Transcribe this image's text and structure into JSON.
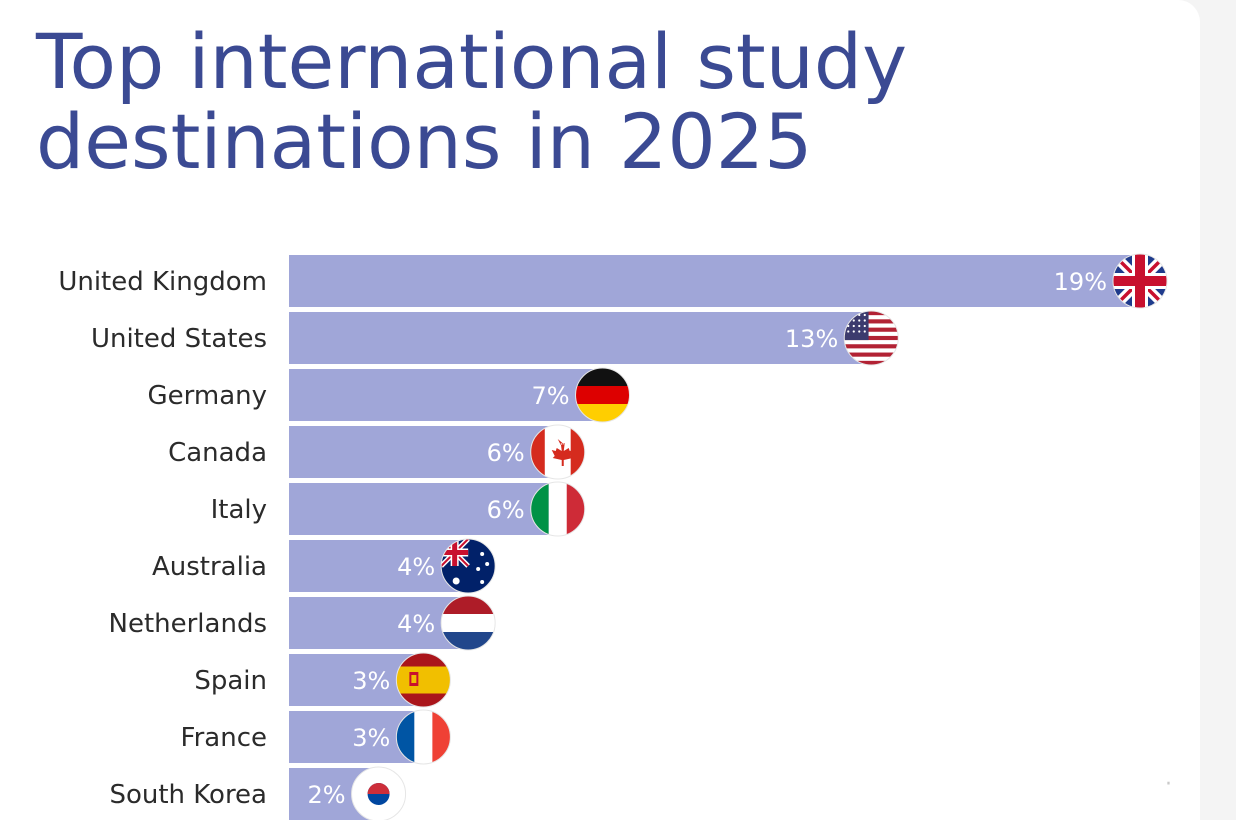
{
  "chart_data": {
    "type": "bar",
    "orientation": "horizontal",
    "title": "Top international study destinations in 2025",
    "title_lines": [
      "Top international study",
      "destinations in 2025"
    ],
    "categories": [
      "United Kingdom",
      "United States",
      "Germany",
      "Canada",
      "Italy",
      "Australia",
      "Netherlands",
      "Spain",
      "France",
      "South Korea"
    ],
    "values": [
      19,
      13,
      7,
      6,
      6,
      4,
      4,
      3,
      3,
      2
    ],
    "value_labels": [
      "19%",
      "13%",
      "7%",
      "6%",
      "6%",
      "4%",
      "4%",
      "3%",
      "3%",
      "2%"
    ],
    "unit": "%",
    "xlim": [
      0,
      19.5
    ],
    "grid": false,
    "legend": "none",
    "bar_color": "#a0a6d8",
    "title_color": "#3b4a93",
    "flags": [
      "uk-flag-icon",
      "us-flag-icon",
      "germany-flag-icon",
      "canada-flag-icon",
      "italy-flag-icon",
      "australia-flag-icon",
      "netherlands-flag-icon",
      "spain-flag-icon",
      "france-flag-icon",
      "south-korea-flag-icon"
    ]
  }
}
